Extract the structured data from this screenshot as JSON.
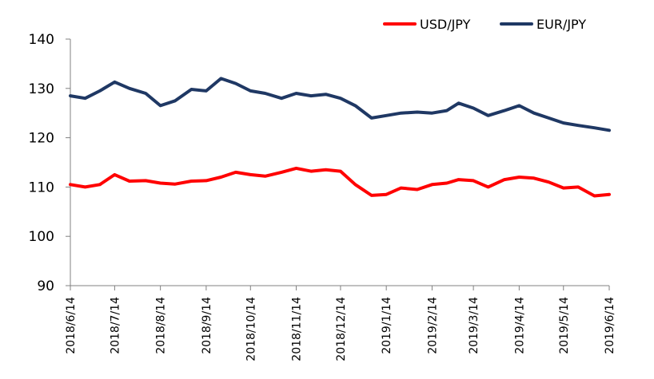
{
  "chart_data": {
    "type": "line",
    "title": "",
    "xlabel": "",
    "ylabel": "",
    "ylim": [
      90,
      140
    ],
    "y_ticks": [
      90,
      100,
      110,
      120,
      130,
      140
    ],
    "x_ticks": [
      "2018/6/14",
      "2018/7/14",
      "2018/8/14",
      "2018/9/14",
      "2018/10/14",
      "2018/11/14",
      "2018/12/14",
      "2019/1/14",
      "2019/2/14",
      "2019/3/14",
      "2019/4/14",
      "2019/5/14",
      "2019/6/14"
    ],
    "grid": false,
    "legend_position": "top-right",
    "x": [
      "2018/6/14",
      "2018/6/24",
      "2018/7/4",
      "2018/7/14",
      "2018/7/24",
      "2018/8/4",
      "2018/8/14",
      "2018/8/24",
      "2018/9/4",
      "2018/9/14",
      "2018/9/24",
      "2018/10/4",
      "2018/10/14",
      "2018/10/24",
      "2018/11/4",
      "2018/11/14",
      "2018/11/24",
      "2018/12/4",
      "2018/12/14",
      "2018/12/24",
      "2019/1/4",
      "2019/1/14",
      "2019/1/24",
      "2019/2/4",
      "2019/2/14",
      "2019/2/24",
      "2019/3/4",
      "2019/3/14",
      "2019/3/24",
      "2019/4/4",
      "2019/4/14",
      "2019/4/24",
      "2019/5/4",
      "2019/5/14",
      "2019/5/24",
      "2019/6/4",
      "2019/6/14"
    ],
    "series": [
      {
        "name": "USD/JPY",
        "color": "#ff0000",
        "values": [
          110.5,
          110.0,
          110.5,
          112.5,
          111.2,
          111.3,
          110.8,
          110.6,
          111.2,
          111.3,
          112.0,
          113.0,
          112.5,
          112.2,
          113.0,
          113.8,
          113.2,
          113.5,
          113.2,
          110.5,
          108.3,
          108.5,
          109.8,
          109.5,
          110.5,
          110.8,
          111.5,
          111.3,
          110.0,
          111.5,
          112.0,
          111.8,
          111.0,
          109.8,
          110.0,
          108.2,
          108.5
        ],
        "labels_note": ""
      },
      {
        "name": "EUR/JPY",
        "color": "#1f3864",
        "values": [
          128.5,
          128.0,
          129.5,
          131.3,
          130.0,
          129.0,
          126.5,
          127.5,
          129.8,
          129.5,
          132.0,
          131.0,
          129.5,
          129.0,
          128.0,
          129.0,
          128.5,
          128.8,
          128.0,
          126.5,
          124.0,
          124.5,
          125.0,
          125.2,
          125.0,
          125.5,
          127.0,
          126.0,
          124.5,
          125.5,
          126.5,
          125.0,
          124.0,
          123.0,
          122.5,
          122.0,
          121.5
        ]
      }
    ]
  }
}
